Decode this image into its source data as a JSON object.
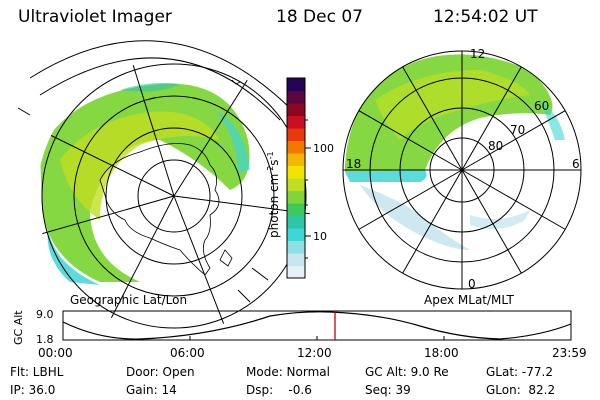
{
  "header": {
    "title": "Ultraviolet Imager",
    "date": "18 Dec 07",
    "time": "12:54:02 UT"
  },
  "colorbar": {
    "unit_prefix": "photon cm",
    "exp1": "-2",
    "unit_s": "s",
    "exp2": "-1",
    "tick_100": "100",
    "tick_10": "10",
    "colors": [
      "#e7f0f7",
      "#c8e6ef",
      "#8fdfe6",
      "#3ed6d6",
      "#2dc7a8",
      "#3ccb5a",
      "#7fd639",
      "#c0df22",
      "#f0e400",
      "#f6b500",
      "#f27800",
      "#e63a0c",
      "#c81020",
      "#8a0824",
      "#5a0640",
      "#260455"
    ]
  },
  "geo_map": {
    "label": "Geographic Lat/Lon"
  },
  "mag_map": {
    "label": "Apex MLat/MLT",
    "mlt_top": "12",
    "mlt_bottom": "0",
    "mlt_left": "18",
    "mlt_right": "6",
    "lat_60": "60",
    "lat_70": "70",
    "lat_80": "80"
  },
  "altitude_plot": {
    "ylabel": "GC Alt",
    "ytick_top": "9.0",
    "ytick_bottom": "1.8",
    "xticks": [
      "00:00",
      "06:00",
      "12:00",
      "18:00",
      "23:59"
    ],
    "marker_color": "#cc0000"
  },
  "status": {
    "flt": "Flt: LBHL",
    "ip": "IP: 36.0",
    "door": "Door: Open",
    "gain": "Gain: 14",
    "mode": "Mode: Normal",
    "dsp": "Dsp:    -0.6",
    "gcalt": "GC Alt: 9.0 Re",
    "seq": "Seq: 39",
    "glat": "GLat: -77.2",
    "glon": "GLon:  82.2"
  }
}
